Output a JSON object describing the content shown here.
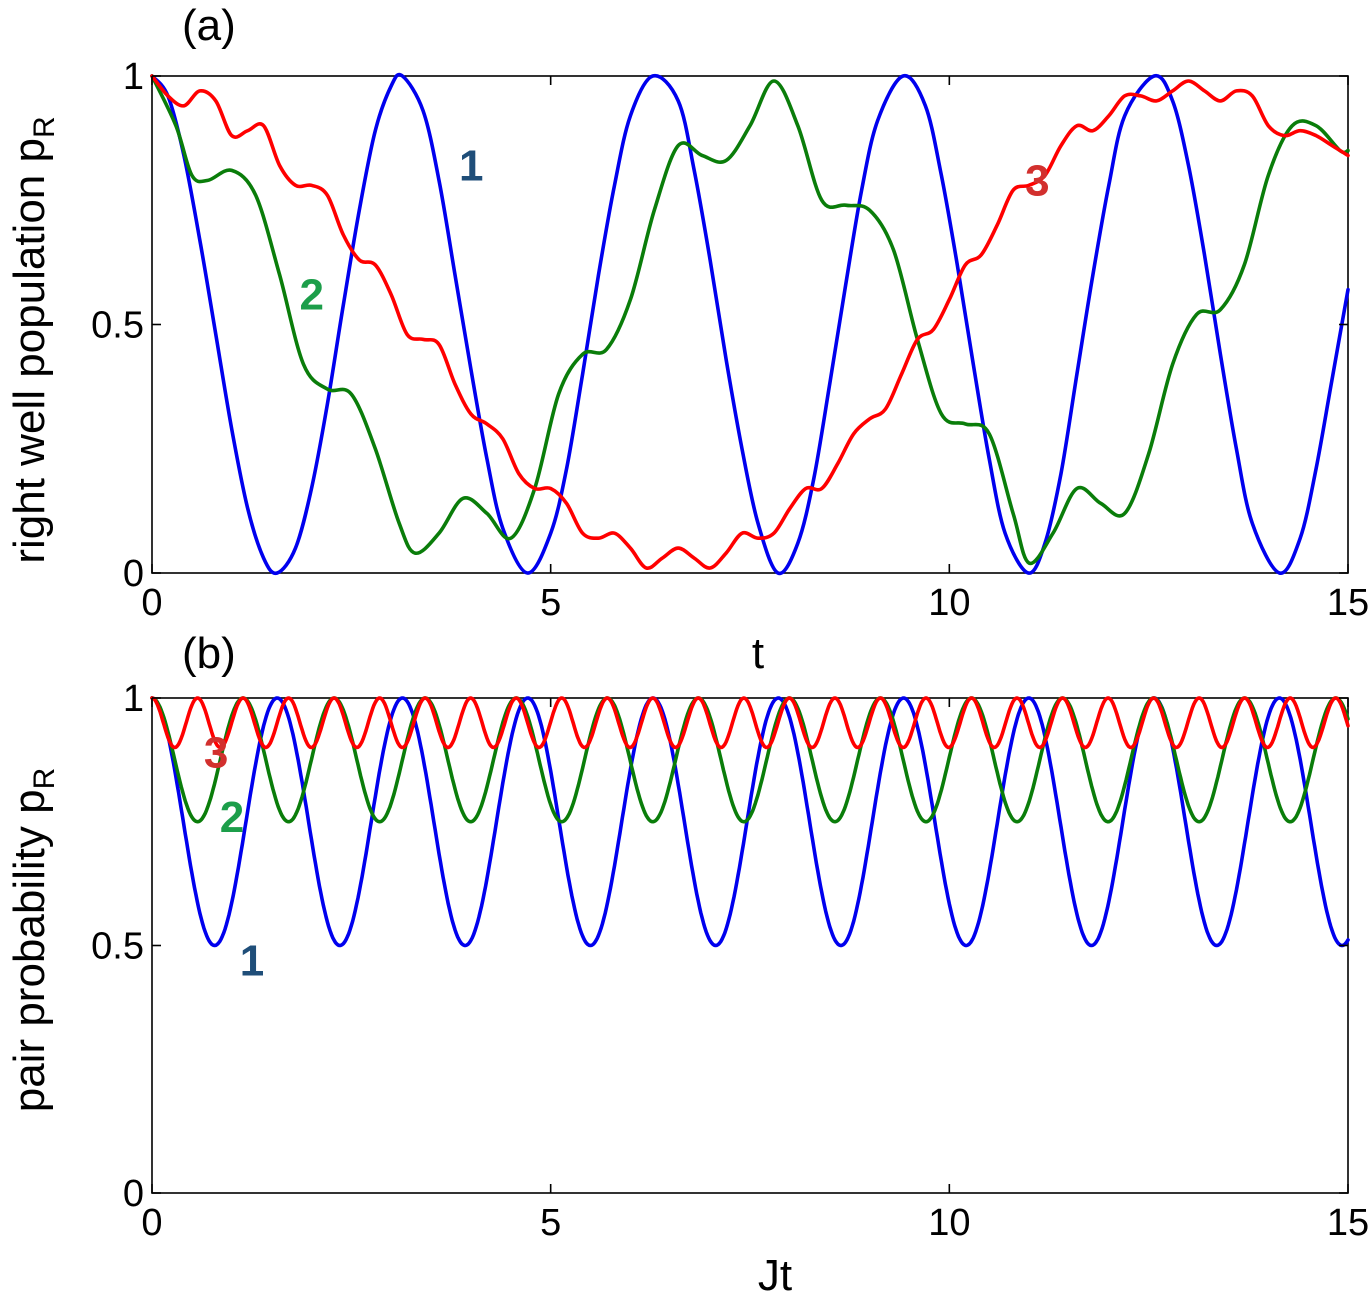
{
  "chart_data": [
    {
      "type": "line",
      "panel_label": "(a)",
      "xlabel": "t",
      "ylabel": "right well population p",
      "ylabel_sub": "R",
      "xlim": [
        0,
        15
      ],
      "ylim": [
        0,
        1
      ],
      "xticks": [
        0,
        5,
        10,
        15
      ],
      "xtick_labels": [
        "0",
        "5",
        "10",
        "15"
      ],
      "yticks": [
        0,
        0.5,
        1
      ],
      "ytick_labels": [
        "0",
        "0.5",
        "1"
      ],
      "grid": false,
      "series": [
        {
          "name": "1",
          "color": "#0000ee",
          "label_color": "#1f4e79",
          "label_at": [
            3.85,
            0.82
          ],
          "x": [
            0,
            0.2,
            0.4,
            0.6,
            0.8,
            1.0,
            1.2,
            1.4,
            1.57,
            1.8,
            2.0,
            2.2,
            2.4,
            2.6,
            2.8,
            3.0,
            3.14,
            3.4,
            3.6,
            3.8,
            4.0,
            4.2,
            4.4,
            4.71,
            5.0,
            5.2,
            5.4,
            5.6,
            5.8,
            6.0,
            6.28,
            6.6,
            6.8,
            7.0,
            7.2,
            7.4,
            7.6,
            7.85,
            8.1,
            8.3,
            8.5,
            8.7,
            8.9,
            9.1,
            9.42,
            9.7,
            9.9,
            10.1,
            10.3,
            10.5,
            10.7,
            10.99,
            11.2,
            11.4,
            11.6,
            11.8,
            12.0,
            12.2,
            12.57,
            12.8,
            13.0,
            13.2,
            13.4,
            13.6,
            13.8,
            14.14,
            14.4,
            14.6,
            14.8,
            15.0
          ],
          "y": [
            1.0,
            0.96,
            0.84,
            0.67,
            0.48,
            0.29,
            0.13,
            0.03,
            0.0,
            0.05,
            0.17,
            0.34,
            0.54,
            0.73,
            0.89,
            0.98,
            1.0,
            0.93,
            0.79,
            0.6,
            0.41,
            0.23,
            0.09,
            0.0,
            0.08,
            0.21,
            0.4,
            0.6,
            0.78,
            0.92,
            1.0,
            0.95,
            0.81,
            0.63,
            0.43,
            0.25,
            0.1,
            0.0,
            0.06,
            0.19,
            0.38,
            0.58,
            0.77,
            0.91,
            1.0,
            0.94,
            0.8,
            0.62,
            0.42,
            0.23,
            0.08,
            0.0,
            0.06,
            0.2,
            0.4,
            0.6,
            0.78,
            0.92,
            1.0,
            0.95,
            0.82,
            0.64,
            0.44,
            0.25,
            0.1,
            0.0,
            0.07,
            0.21,
            0.39,
            0.57
          ]
        },
        {
          "name": "2",
          "color": "#0a7d0a",
          "label_color": "#1c9e4a",
          "label_at": [
            1.85,
            0.56
          ],
          "x": [
            0,
            0.3,
            0.5,
            0.7,
            1.0,
            1.3,
            1.6,
            1.9,
            2.2,
            2.5,
            2.8,
            3.1,
            3.3,
            3.6,
            3.9,
            4.2,
            4.5,
            4.8,
            5.1,
            5.4,
            5.7,
            6.0,
            6.3,
            6.6,
            6.9,
            7.2,
            7.5,
            7.8,
            8.1,
            8.4,
            8.7,
            9.0,
            9.3,
            9.6,
            9.9,
            10.2,
            10.5,
            10.8,
            11.0,
            11.3,
            11.6,
            11.9,
            12.2,
            12.5,
            12.8,
            13.1,
            13.4,
            13.7,
            14.0,
            14.3,
            14.6,
            14.9,
            15.0
          ],
          "y": [
            1.0,
            0.9,
            0.8,
            0.79,
            0.81,
            0.76,
            0.6,
            0.42,
            0.37,
            0.36,
            0.25,
            0.1,
            0.04,
            0.08,
            0.15,
            0.12,
            0.07,
            0.17,
            0.36,
            0.44,
            0.45,
            0.55,
            0.73,
            0.86,
            0.84,
            0.83,
            0.9,
            0.99,
            0.9,
            0.75,
            0.74,
            0.73,
            0.65,
            0.47,
            0.32,
            0.3,
            0.28,
            0.12,
            0.02,
            0.08,
            0.17,
            0.14,
            0.12,
            0.24,
            0.42,
            0.52,
            0.53,
            0.62,
            0.8,
            0.9,
            0.9,
            0.85,
            0.85
          ]
        },
        {
          "name": "3",
          "color": "#ff0000",
          "label_color": "#d2302e",
          "label_at": [
            10.95,
            0.79
          ],
          "x": [
            0,
            0.2,
            0.4,
            0.6,
            0.8,
            1.0,
            1.2,
            1.4,
            1.6,
            1.8,
            2.0,
            2.2,
            2.4,
            2.6,
            2.8,
            3.0,
            3.2,
            3.4,
            3.6,
            3.8,
            4.0,
            4.2,
            4.4,
            4.6,
            4.8,
            5.0,
            5.2,
            5.4,
            5.6,
            5.8,
            6.0,
            6.2,
            6.4,
            6.6,
            6.8,
            7.0,
            7.2,
            7.4,
            7.6,
            7.8,
            8.0,
            8.2,
            8.4,
            8.6,
            8.8,
            9.0,
            9.2,
            9.4,
            9.6,
            9.8,
            10.0,
            10.2,
            10.4,
            10.6,
            10.8,
            11.0,
            11.2,
            11.4,
            11.6,
            11.8,
            12.0,
            12.2,
            12.4,
            12.6,
            12.8,
            13.0,
            13.2,
            13.4,
            13.6,
            13.8,
            14.0,
            14.2,
            14.4,
            14.6,
            14.8,
            15.0
          ],
          "y": [
            1.0,
            0.96,
            0.94,
            0.97,
            0.95,
            0.88,
            0.89,
            0.9,
            0.82,
            0.78,
            0.78,
            0.76,
            0.68,
            0.63,
            0.62,
            0.56,
            0.48,
            0.47,
            0.46,
            0.38,
            0.32,
            0.3,
            0.27,
            0.2,
            0.17,
            0.17,
            0.14,
            0.08,
            0.07,
            0.08,
            0.05,
            0.01,
            0.03,
            0.05,
            0.03,
            0.01,
            0.04,
            0.08,
            0.07,
            0.08,
            0.13,
            0.17,
            0.17,
            0.22,
            0.28,
            0.31,
            0.33,
            0.4,
            0.47,
            0.49,
            0.55,
            0.62,
            0.64,
            0.7,
            0.77,
            0.78,
            0.8,
            0.86,
            0.9,
            0.89,
            0.92,
            0.96,
            0.96,
            0.95,
            0.97,
            0.99,
            0.97,
            0.95,
            0.97,
            0.96,
            0.9,
            0.88,
            0.89,
            0.88,
            0.86,
            0.84
          ]
        }
      ]
    },
    {
      "type": "line",
      "panel_label": "(b)",
      "xlabel": "Jt",
      "ylabel": "pair probability p",
      "ylabel_sub": "R",
      "xlim": [
        0,
        15
      ],
      "ylim": [
        0,
        1
      ],
      "xticks": [
        0,
        5,
        10,
        15
      ],
      "xtick_labels": [
        "0",
        "5",
        "10",
        "15"
      ],
      "yticks": [
        0,
        0.5,
        1
      ],
      "ytick_labels": [
        "0",
        "0.5",
        "1"
      ],
      "grid": false,
      "series": [
        {
          "name": "1",
          "color": "#0000ee",
          "label_color": "#1f4e79",
          "label_at": [
            1.1,
            0.47
          ],
          "period": 1.571,
          "y_min": 0.5,
          "y_max": 1.0,
          "phase": 0.0
        },
        {
          "name": "2",
          "color": "#0a7d0a",
          "label_color": "#1c9e4a",
          "label_at": [
            0.85,
            0.76
          ],
          "period": 1.142,
          "y_min": 0.75,
          "y_max": 1.0,
          "phase": 0.0
        },
        {
          "name": "3",
          "color": "#ff0000",
          "label_color": "#d2302e",
          "label_at": [
            0.65,
            0.89
          ],
          "period": 0.571,
          "y_min": 0.9,
          "y_max": 1.0,
          "phase": 0.0
        }
      ]
    }
  ]
}
